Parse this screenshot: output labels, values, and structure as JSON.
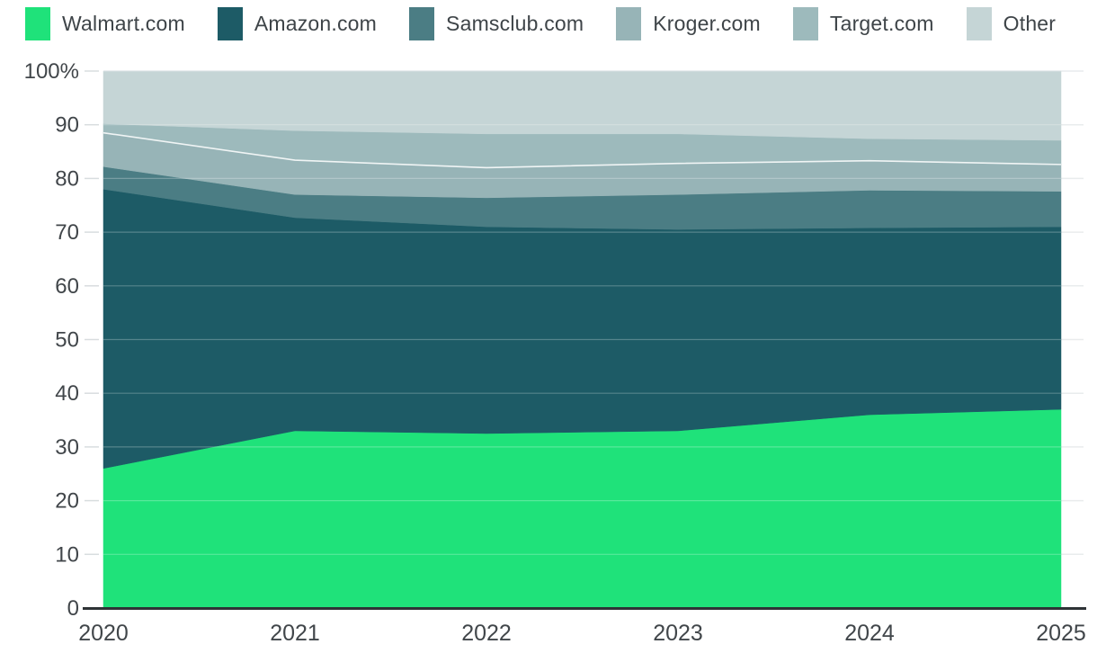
{
  "chart_data": {
    "type": "area",
    "stacked": true,
    "unit": "%",
    "title": "",
    "xlabel": "",
    "ylabel": "",
    "x": [
      2020,
      2021,
      2022,
      2023,
      2024,
      2025
    ],
    "xtick_labels": [
      "2020",
      "2021",
      "2022",
      "2023",
      "2024",
      "2025"
    ],
    "ylim": [
      0,
      100
    ],
    "yticks": [
      0,
      10,
      20,
      30,
      40,
      50,
      60,
      70,
      80,
      90,
      100
    ],
    "ytick_labels": [
      "0",
      "10",
      "20",
      "30",
      "40",
      "50",
      "60",
      "70",
      "80",
      "90",
      "100%"
    ],
    "grid": true,
    "legend_position": "top",
    "series": [
      {
        "name": "Walmart.com",
        "color": "#1fe27a",
        "values": [
          26.0,
          33.0,
          32.5,
          33.0,
          36.0,
          37.0
        ]
      },
      {
        "name": "Amazon.com",
        "color": "#1d5b66",
        "values": [
          52.0,
          39.7,
          38.5,
          37.5,
          34.8,
          34.0
        ]
      },
      {
        "name": "Samsclub.com",
        "color": "#4b7d84",
        "values": [
          4.2,
          4.3,
          5.4,
          6.5,
          7.0,
          6.6
        ]
      },
      {
        "name": "Kroger.com",
        "color": "#97b4b7",
        "values": [
          6.3,
          6.4,
          5.6,
          5.8,
          5.5,
          5.0
        ]
      },
      {
        "name": "Target.com",
        "color": "#9dbabc",
        "values": [
          1.7,
          5.5,
          6.3,
          5.5,
          4.1,
          4.5
        ]
      },
      {
        "name": "Other",
        "color": "#c5d5d6",
        "values": [
          9.8,
          11.1,
          11.7,
          11.7,
          12.6,
          12.9
        ]
      }
    ]
  },
  "style": {
    "axis_text_color": "#41464a",
    "axis_line_color": "#2e3336",
    "gridline_color": "#e9eced",
    "tick_color": "#d8dddf",
    "boundary_line_color": "#ffffff"
  }
}
